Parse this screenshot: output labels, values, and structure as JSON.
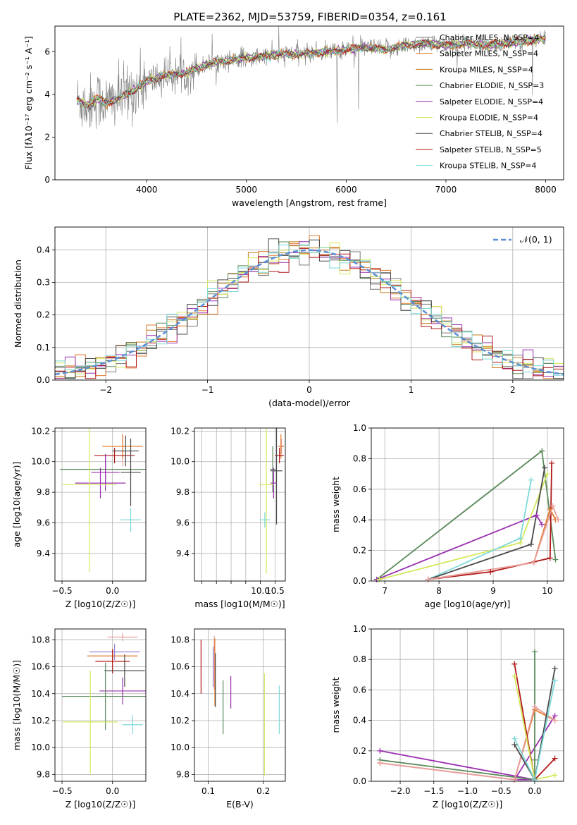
{
  "figure": {
    "title": "PLATE=2362, MJD=53759, FIBERID=0354, z=0.161"
  },
  "chart_data": [
    {
      "id": "spectrum",
      "type": "line",
      "xlabel": "wavelength [Angstrom, rest frame]",
      "ylabel": "Flux [fλ10⁻¹⁷ erg cm⁻² s⁻¹ A⁻¹]",
      "xlim": [
        3080,
        8180
      ],
      "ylim": [
        0,
        7.2
      ],
      "xticks": [
        4000,
        5000,
        6000,
        7000,
        8000
      ],
      "yticks": [
        0,
        2,
        4,
        6
      ],
      "grid": false,
      "legend_position": "top-right",
      "data_coverage": [
        3300,
        8000
      ],
      "observed": {
        "x": [
          3300,
          3400,
          3500,
          3600,
          3700,
          3800,
          3900,
          4000,
          4200,
          4400,
          4600,
          4800,
          5000,
          5200,
          5400,
          5600,
          5800,
          6000,
          6200,
          6400,
          6600,
          6800,
          7000,
          7200,
          7400,
          7600,
          7800,
          8000
        ],
        "y": [
          3.7,
          3.5,
          3.8,
          3.6,
          3.8,
          4.0,
          4.3,
          4.6,
          4.9,
          5.0,
          5.4,
          5.6,
          5.7,
          5.8,
          5.9,
          5.9,
          6.0,
          6.1,
          6.2,
          6.1,
          6.3,
          6.4,
          6.3,
          6.4,
          6.3,
          6.4,
          6.5,
          6.6
        ]
      },
      "series": [
        {
          "name": "Chabrier MILES, N_SSP=4",
          "color": "#7a7a7a"
        },
        {
          "name": "Salpeter MILES, N_SSP=4",
          "color": "#e07a2e"
        },
        {
          "name": "Kroupa MILES, N_SSP=4",
          "color": "#c87d1c"
        },
        {
          "name": "Chabrier ELODIE, N_SSP=3",
          "color": "#5a8a5a"
        },
        {
          "name": "Salpeter ELODIE, N_SSP=4",
          "color": "#9a2fb0"
        },
        {
          "name": "Kroupa ELODIE, N_SSP=4",
          "color": "#d4e85a"
        },
        {
          "name": "Chabrier STELIB, N_SSP=4",
          "color": "#4a4a4a"
        },
        {
          "name": "Salpeter STELIB, N_SSP=5",
          "color": "#b01818"
        },
        {
          "name": "Kroupa STELIB, N_SSP=4",
          "color": "#7ed8d8"
        }
      ]
    },
    {
      "id": "residuals",
      "type": "area",
      "xlabel": "(data-model)/error",
      "ylabel": "Normed distribution",
      "xlim": [
        -2.5,
        2.5
      ],
      "ylim": [
        0,
        0.47
      ],
      "xticks": [
        -2,
        -1,
        0,
        1,
        2
      ],
      "yticks": [
        0.0,
        0.1,
        0.2,
        0.3,
        0.4
      ],
      "grid": true,
      "legend_position": "top-right",
      "legend": "𝒩(0, 1)",
      "bin_width": 0.1
    },
    {
      "id": "age-vs-Z",
      "type": "scatter",
      "xlabel": "Z [log10(Z/Z☉)]",
      "ylabel": "age  [log10(age/yr)]",
      "xlim": [
        -0.57,
        0.33
      ],
      "ylim": [
        9.22,
        10.22
      ],
      "xticks": [
        -0.5,
        0.0
      ],
      "yticks": [
        9.4,
        9.6,
        9.8,
        10.0,
        10.2
      ],
      "grid": true,
      "points": [
        {
          "x": 0.1,
          "y": 10.07,
          "xerr": 0.1,
          "yerr": 0.1,
          "color": "#e8a0a0"
        },
        {
          "x": 0.1,
          "y": 10.1,
          "xerr": 0.2,
          "yerr": 0.08,
          "color": "#e07a2e"
        },
        {
          "x": 0.02,
          "y": 10.04,
          "xerr": 0.2,
          "yerr": 0.05,
          "color": "#b01818"
        },
        {
          "x": 0.13,
          "y": 10.07,
          "xerr": 0.13,
          "yerr": 0.1,
          "color": "#4a4a4a"
        },
        {
          "x": -0.07,
          "y": 9.95,
          "xerr": 0.45,
          "yerr": 0.09,
          "color": "#5a8a5a"
        },
        {
          "x": -0.07,
          "y": 9.93,
          "xerr": 0.14,
          "yerr": 0.12,
          "color": "#9a2fb0"
        },
        {
          "x": -0.12,
          "y": 9.86,
          "xerr": 0.25,
          "yerr": 0.1,
          "color": "#9a2fb0"
        },
        {
          "x": -0.23,
          "y": 9.85,
          "xerr": 0.27,
          "yerr": 0.57,
          "color": "#d4e85a"
        },
        {
          "x": 0.18,
          "y": 9.93,
          "xerr": 0.1,
          "yerr": 0.22,
          "color": "#4a4a4a"
        },
        {
          "x": 0.18,
          "y": 9.62,
          "xerr": 0.1,
          "yerr": 0.08,
          "color": "#7ed8d8"
        }
      ]
    },
    {
      "id": "age-vs-mass",
      "type": "scatter",
      "xlabel": "mass [log10(M/M☉)]",
      "ylabel": "",
      "xlim": [
        7.75,
        10.85
      ],
      "ylim": [
        9.22,
        10.22
      ],
      "xticks": [
        8.0,
        8.5,
        9.0,
        9.5,
        10.0,
        10.5
      ],
      "yticks": [
        9.4,
        9.6,
        9.8,
        10.0,
        10.2
      ],
      "grid": true,
      "tick_labels_shown": [
        "10.0",
        "10.5"
      ],
      "points": [
        {
          "x": 10.72,
          "y": 10.1,
          "xerr": 0.08,
          "yerr": 0.05,
          "color": "#e8a0a0"
        },
        {
          "x": 10.7,
          "y": 10.1,
          "xerr": 0.1,
          "yerr": 0.08,
          "color": "#e07a2e"
        },
        {
          "x": 10.65,
          "y": 10.04,
          "xerr": 0.15,
          "yerr": 0.05,
          "color": "#b01818"
        },
        {
          "x": 10.55,
          "y": 9.94,
          "xerr": 0.2,
          "yerr": 0.35,
          "color": "#4a4a4a"
        },
        {
          "x": 10.42,
          "y": 9.95,
          "xerr": 0.1,
          "yerr": 0.15,
          "color": "#5a8a5a"
        },
        {
          "x": 10.45,
          "y": 9.86,
          "xerr": 0.1,
          "yerr": 0.1,
          "color": "#9a2fb0"
        },
        {
          "x": 10.2,
          "y": 9.85,
          "xerr": 0.25,
          "yerr": 0.58,
          "color": "#d4e85a"
        },
        {
          "x": 10.15,
          "y": 9.62,
          "xerr": 0.18,
          "yerr": 0.05,
          "color": "#7ed8d8"
        }
      ]
    },
    {
      "id": "weight-vs-age",
      "type": "line",
      "xlabel": "age  [log10(age/yr)]",
      "ylabel": "mass weight",
      "xlim": [
        6.75,
        10.3
      ],
      "ylim": [
        0,
        1.0
      ],
      "xticks": [
        7,
        8,
        9,
        10
      ],
      "yticks": [
        0.0,
        0.2,
        0.4,
        0.6,
        0.8,
        1.0
      ],
      "grid": true,
      "series": [
        {
          "color": "#5a8a5a",
          "x": [
            6.85,
            9.9,
            10.15
          ],
          "y": [
            0.01,
            0.85,
            0.14
          ]
        },
        {
          "color": "#9a2fb0",
          "x": [
            6.85,
            9.8,
            9.9
          ],
          "y": [
            0.01,
            0.43,
            0.37
          ]
        },
        {
          "color": "#d4e85a",
          "x": [
            6.9,
            9.5,
            10.0
          ],
          "y": [
            0.01,
            0.25,
            0.7
          ]
        },
        {
          "color": "#7ed8d8",
          "x": [
            7.8,
            9.5,
            9.7
          ],
          "y": [
            0.01,
            0.28,
            0.66
          ]
        },
        {
          "color": "#4a4a4a",
          "x": [
            7.8,
            9.7,
            9.95
          ],
          "y": [
            0.01,
            0.24,
            0.74
          ]
        },
        {
          "color": "#b01818",
          "x": [
            7.8,
            8.95,
            10.05,
            10.08
          ],
          "y": [
            0.01,
            0.06,
            0.15,
            0.77
          ]
        },
        {
          "color": "#e07a2e",
          "x": [
            7.8,
            9.75,
            10.05,
            10.15
          ],
          "y": [
            0.01,
            0.12,
            0.47,
            0.4
          ]
        },
        {
          "color": "#e8a0a0",
          "x": [
            7.8,
            9.75,
            10.1,
            10.2
          ],
          "y": [
            0.01,
            0.12,
            0.49,
            0.4
          ]
        }
      ]
    },
    {
      "id": "mass-vs-Z",
      "type": "scatter",
      "xlabel": "Z [log10(Z/Z☉)]",
      "ylabel": "mass [log10(M/M☉)]",
      "xlim": [
        -0.57,
        0.33
      ],
      "ylim": [
        9.75,
        10.88
      ],
      "xticks": [
        -0.5,
        0.0
      ],
      "yticks": [
        9.8,
        10.0,
        10.2,
        10.4,
        10.6,
        10.8
      ],
      "grid": true,
      "points": [
        {
          "x": 0.1,
          "y": 10.82,
          "xerr": 0.15,
          "yerr": 0.03,
          "color": "#e8a0a0"
        },
        {
          "x": 0.02,
          "y": 10.71,
          "xerr": 0.25,
          "yerr": 0.06,
          "color": "#9b84d6"
        },
        {
          "x": 0.0,
          "y": 10.68,
          "xerr": 0.25,
          "yerr": 0.05,
          "color": "#e07a2e"
        },
        {
          "x": 0.0,
          "y": 10.64,
          "xerr": 0.17,
          "yerr": 0.09,
          "color": "#b01818"
        },
        {
          "x": 0.12,
          "y": 10.57,
          "xerr": 0.2,
          "yerr": 0.12,
          "color": "#4a4a4a"
        },
        {
          "x": 0.1,
          "y": 10.42,
          "xerr": 0.23,
          "yerr": 0.1,
          "color": "#9a2fb0"
        },
        {
          "x": -0.07,
          "y": 10.38,
          "xerr": 0.43,
          "yerr": 0.25,
          "color": "#5a8a5a"
        },
        {
          "x": -0.22,
          "y": 10.19,
          "xerr": 0.27,
          "yerr": 0.38,
          "color": "#d4e85a"
        },
        {
          "x": 0.2,
          "y": 10.17,
          "xerr": 0.1,
          "yerr": 0.07,
          "color": "#7ed8d8"
        }
      ]
    },
    {
      "id": "mass-vs-ebv",
      "type": "scatter",
      "xlabel": "E(B-V)",
      "ylabel": "",
      "xlim": [
        0.075,
        0.24
      ],
      "ylim": [
        9.75,
        10.88
      ],
      "xticks": [
        0.1,
        0.2
      ],
      "yticks": [
        9.8,
        10.0,
        10.2,
        10.4,
        10.6,
        10.8
      ],
      "grid": true,
      "points": [
        {
          "x": 0.087,
          "y": 10.6,
          "yerr": 0.2,
          "color": "#b01818"
        },
        {
          "x": 0.109,
          "y": 10.6,
          "yerr": 0.15,
          "color": "#9b84d6"
        },
        {
          "x": 0.111,
          "y": 10.63,
          "yerr": 0.2,
          "color": "#e8a0a0"
        },
        {
          "x": 0.112,
          "y": 10.56,
          "yerr": 0.25,
          "color": "#e07a2e"
        },
        {
          "x": 0.113,
          "y": 10.5,
          "yerr": 0.2,
          "color": "#4a4a4a"
        },
        {
          "x": 0.127,
          "y": 10.3,
          "yerr": 0.2,
          "color": "#5a8a5a"
        },
        {
          "x": 0.141,
          "y": 10.41,
          "yerr": 0.12,
          "color": "#9a2fb0"
        },
        {
          "x": 0.202,
          "y": 10.17,
          "yerr": 0.38,
          "color": "#d4e85a"
        },
        {
          "x": 0.229,
          "y": 10.28,
          "yerr": 0.18,
          "color": "#7ed8d8"
        }
      ]
    },
    {
      "id": "weight-vs-Z",
      "type": "line",
      "xlabel": "Z [log10(Z/Z☉)]",
      "ylabel": "mass weight",
      "xlim": [
        -2.43,
        0.43
      ],
      "ylim": [
        0,
        1.0
      ],
      "xticks": [
        -2.0,
        -1.5,
        -1.0,
        -0.5,
        0.0
      ],
      "yticks": [
        0.0,
        0.2,
        0.4,
        0.6,
        0.8,
        1.0
      ],
      "grid": true,
      "series": [
        {
          "color": "#9a2fb0",
          "x": [
            -2.3,
            0.0,
            -0.3,
            0.3
          ],
          "y": [
            0.2,
            0.01,
            0.01,
            0.43
          ]
        },
        {
          "color": "#5a8a5a",
          "x": [
            -2.3,
            0.0,
            0.0,
            0.0
          ],
          "y": [
            0.14,
            0.01,
            0.85,
            0.14
          ]
        },
        {
          "color": "#e07a2e",
          "x": [
            -2.3,
            -0.3,
            0.0,
            0.3
          ],
          "y": [
            0.12,
            0.01,
            0.47,
            0.4
          ]
        },
        {
          "color": "#e8a0a0",
          "x": [
            -2.3,
            -0.3,
            0.0,
            0.3
          ],
          "y": [
            0.12,
            0.01,
            0.49,
            0.4
          ]
        },
        {
          "color": "#b01818",
          "x": [
            -0.3,
            0.0,
            0.3
          ],
          "y": [
            0.77,
            0.01,
            0.15
          ]
        },
        {
          "color": "#d4e85a",
          "x": [
            -0.3,
            0.0,
            0.3
          ],
          "y": [
            0.69,
            0.01,
            0.04
          ]
        },
        {
          "color": "#4a4a4a",
          "x": [
            -0.3,
            0.0,
            0.3
          ],
          "y": [
            0.24,
            0.01,
            0.74
          ]
        },
        {
          "color": "#7ed8d8",
          "x": [
            -0.3,
            0.0,
            0.3
          ],
          "y": [
            0.28,
            0.01,
            0.66
          ]
        }
      ]
    }
  ]
}
